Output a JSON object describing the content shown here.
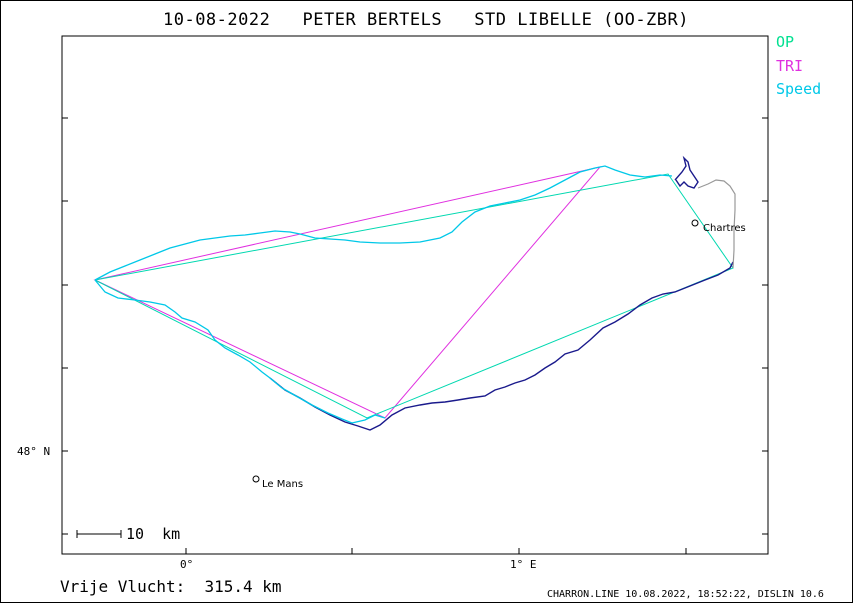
{
  "title": "10-08-2022   PETER BERTELS   STD LIBELLE (OO-ZBR)",
  "legend": [
    {
      "label": "OP",
      "color": "#00e090"
    },
    {
      "label": "TRI",
      "color": "#e030e0"
    },
    {
      "label": "Speed",
      "color": "#00c8e8"
    }
  ],
  "axes": {
    "x_ticks": [
      {
        "label": "0°"
      },
      {
        "label": "1° E"
      }
    ],
    "y_ticks": [
      {
        "label": "48° N"
      }
    ]
  },
  "cities": [
    {
      "name": "Chartres"
    },
    {
      "name": "Le Mans"
    }
  ],
  "scale_bar": {
    "label": "10  km"
  },
  "distance": {
    "label": "Vrije Vlucht:  315.4 km"
  },
  "credit": "CHARRON.LINE 10.08.2022, 18:52:22, DISLIN 10.6",
  "colors": {
    "op": "#00e090",
    "tri": "#e030e0",
    "speed": "#00c8e8",
    "track": "#1a1a8c",
    "track_grey": "#999999"
  }
}
